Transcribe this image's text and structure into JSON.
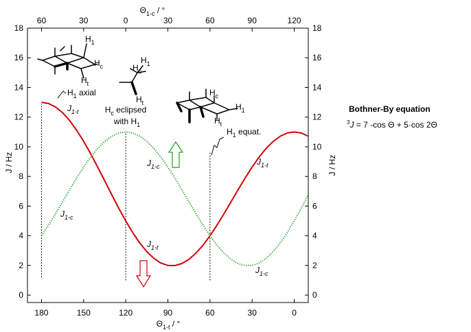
{
  "chart_data": {
    "type": "line",
    "x_title": {
      "main": "Θ",
      "sub": "1-t",
      "rest": " / °"
    },
    "x2_title": {
      "main": "Θ",
      "sub": "1-c",
      "rest": " / °"
    },
    "y_title": "J / Hz",
    "x": [
      180,
      175,
      170,
      165,
      160,
      155,
      150,
      145,
      140,
      135,
      130,
      125,
      120,
      115,
      110,
      105,
      100,
      95,
      90,
      85,
      80,
      75,
      70,
      65,
      60,
      55,
      50,
      45,
      40,
      35,
      30,
      25,
      20,
      15,
      10,
      5,
      0,
      -5,
      -10
    ],
    "series": [
      {
        "color": "#d40000",
        "style": "solid",
        "values": [
          13,
          12.92,
          12.68,
          12.3,
          11.77,
          11.12,
          10.37,
          9.53,
          8.63,
          7.71,
          6.77,
          5.86,
          5,
          4.21,
          3.51,
          2.93,
          2.48,
          2.16,
          2,
          1.99,
          2.13,
          2.41,
          2.83,
          3.36,
          4,
          4.72,
          5.49,
          6.29,
          7.1,
          7.89,
          8.63,
          9.31,
          9.89,
          10.36,
          10.71,
          10.93,
          11,
          10.93,
          10.71
        ]
      },
      {
        "color": "#1e9e1e",
        "style": "dotted",
        "values": [
          4,
          4.72,
          5.49,
          6.29,
          7.1,
          7.89,
          8.63,
          9.31,
          9.89,
          10.36,
          10.71,
          10.93,
          11,
          10.93,
          10.71,
          10.36,
          9.89,
          9.31,
          8.63,
          7.89,
          7.1,
          6.29,
          5.49,
          4.72,
          4,
          3.36,
          2.83,
          2.41,
          2.13,
          1.99,
          2,
          2.16,
          2.48,
          2.93,
          3.51,
          4.21,
          5,
          5.86,
          6.77
        ]
      }
    ],
    "xlim": [
      190,
      -10
    ],
    "xticks": [
      180,
      150,
      120,
      90,
      60,
      30,
      0
    ],
    "x_color": "#d40000",
    "x2lim": [
      70,
      -130
    ],
    "x2ticks": [
      60,
      30,
      0,
      {
        "value": -30,
        "label": "30"
      },
      {
        "value": -60,
        "label": "60"
      },
      {
        "value": -90,
        "label": "90"
      },
      {
        "value": -120,
        "label": "120"
      }
    ],
    "x2_color": "#1e9e1e",
    "ylim": [
      -0.5,
      18
    ],
    "yticks": [
      0,
      2,
      4,
      6,
      8,
      10,
      12,
      14,
      16,
      18
    ],
    "vlines": [
      {
        "x": 180,
        "y": [
          1.2,
          12.9
        ]
      },
      {
        "x": 120,
        "y": [
          1,
          11
        ]
      },
      {
        "x": 60,
        "y": [
          1,
          9.6
        ]
      }
    ],
    "curve_labels": [
      {
        "main": "J",
        "sub": "1-t",
        "color": "#d40000"
      },
      {
        "main": "J",
        "sub": "1-c",
        "color": "#1e9e1e"
      },
      {
        "main": "J",
        "sub": "1-c",
        "color": "#1e9e1e"
      },
      {
        "main": "J",
        "sub": "1-t",
        "color": "#000000"
      },
      {
        "main": "J",
        "sub": "1-t",
        "color": "#d40000"
      },
      {
        "main": "J",
        "sub": "1-c",
        "color": "#1e9e1e"
      }
    ],
    "notes": [
      {
        "main": "H",
        "sub": "1",
        "rest": " axial"
      },
      {
        "main": "H",
        "sub": "c",
        "rest": " eclipsed"
      },
      {
        "main": "with H",
        "sub": "1"
      },
      {
        "main": "H",
        "sub": "1",
        "rest": " equat."
      }
    ],
    "molecule_labels": [
      {
        "main": "H",
        "sub": "1",
        "color": "#2020b0"
      },
      {
        "main": "H",
        "sub": "c",
        "color": "#1e9e1e"
      },
      {
        "main": "H",
        "sub": "t",
        "color": "#d40000"
      },
      {
        "main": "H",
        "sub": "1",
        "color": "#2020b0"
      },
      {
        "main": "H",
        "sub": "c",
        "color": "#d40000"
      },
      {
        "main": "H",
        "sub": "t",
        "color": "#1e9e1e"
      },
      {
        "main": "H",
        "sub": "c",
        "color": "#d40000"
      },
      {
        "main": "H",
        "sub": "1",
        "color": "#2020b0"
      },
      {
        "main": "H",
        "sub": "t",
        "color": "#1e9e1e"
      }
    ],
    "equation": {
      "title": "Bothner-By equation",
      "sup": "3",
      "main": "J",
      "rest": " = 7 -cos Θ  + 5·cos 2Θ"
    }
  }
}
